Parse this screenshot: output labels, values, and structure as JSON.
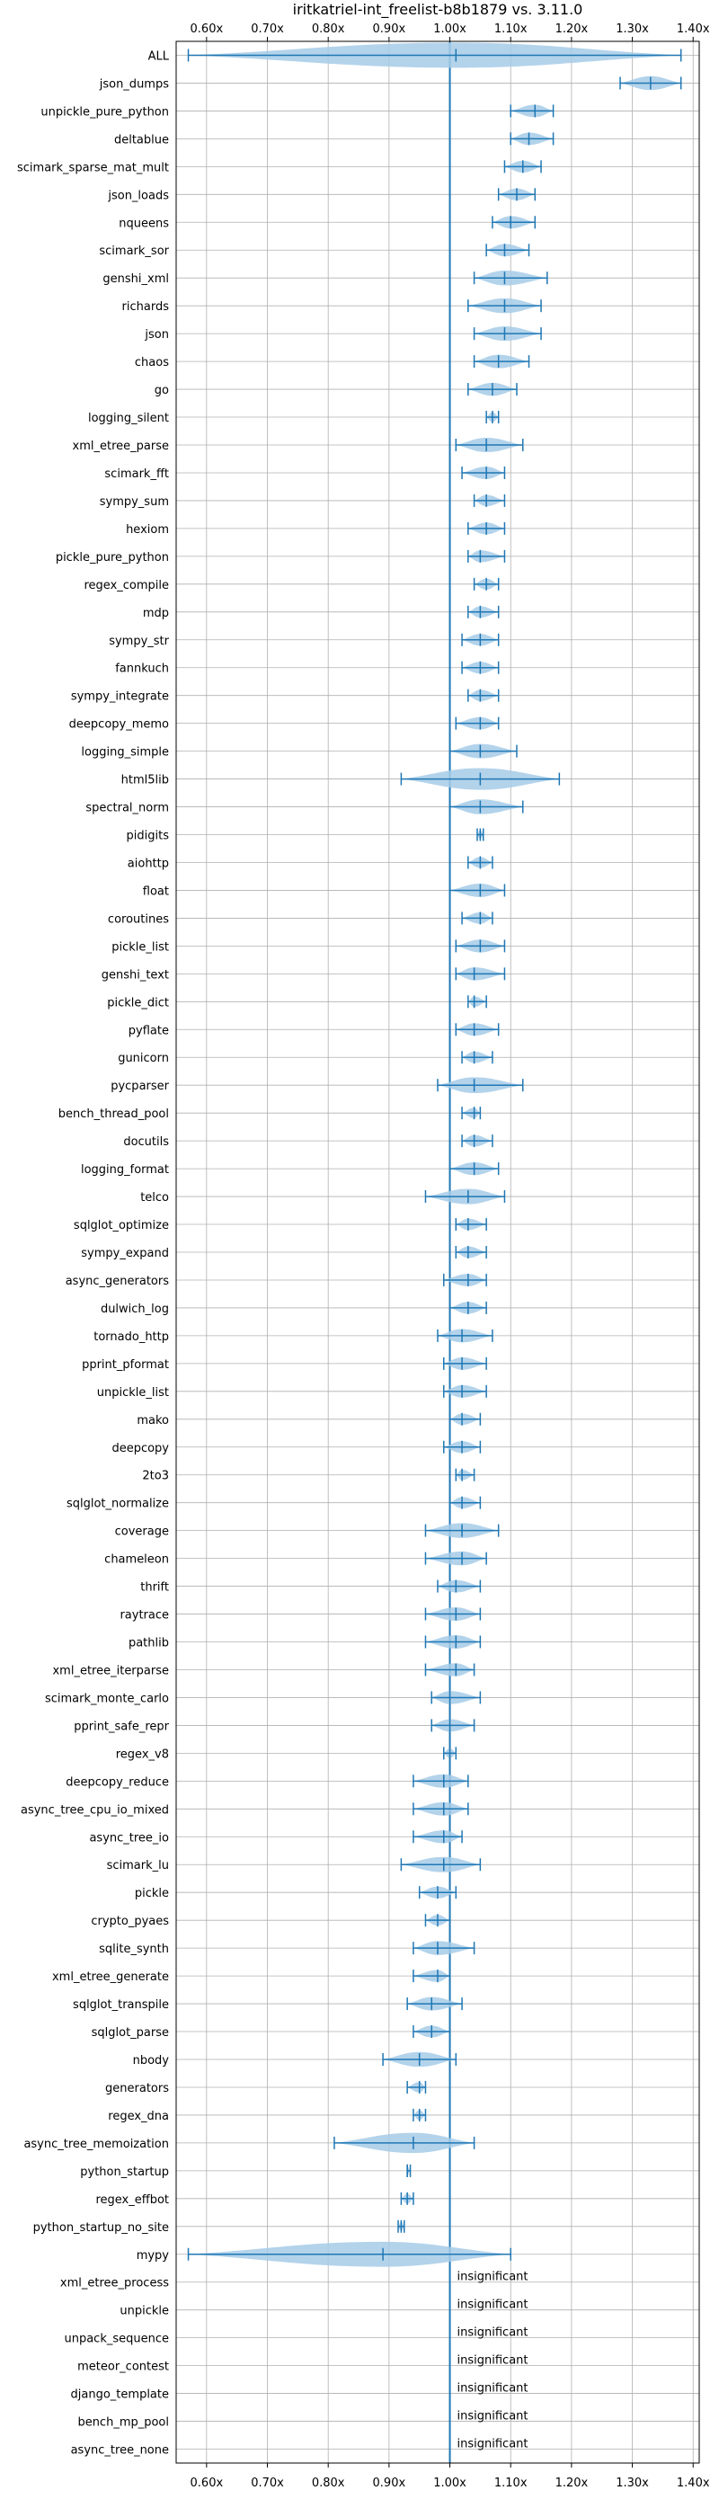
{
  "chart_data": {
    "type": "violin",
    "title": "iritkatriel-int_freelist-b8b1879 vs. 3.11.0",
    "xlabel": "",
    "ylabel": "",
    "xlim": [
      0.55,
      1.41
    ],
    "xticks": [
      0.6,
      0.7,
      0.8,
      0.9,
      1.0,
      1.1,
      1.2,
      1.3,
      1.4
    ],
    "xtick_labels": [
      "0.60x",
      "0.70x",
      "0.80x",
      "0.90x",
      "1.00x",
      "1.10x",
      "1.20x",
      "1.30x",
      "1.40x"
    ],
    "reference_line": 1.0,
    "grid": true,
    "colors": {
      "violin": "#a6cbe8",
      "line": "#1f77b4"
    },
    "benchmarks": [
      {
        "name": "ALL",
        "min": 0.57,
        "max": 1.38,
        "median": 1.01
      },
      {
        "name": "json_dumps",
        "min": 1.28,
        "max": 1.38,
        "median": 1.33
      },
      {
        "name": "unpickle_pure_python",
        "min": 1.1,
        "max": 1.17,
        "median": 1.14
      },
      {
        "name": "deltablue",
        "min": 1.1,
        "max": 1.17,
        "median": 1.13
      },
      {
        "name": "scimark_sparse_mat_mult",
        "min": 1.09,
        "max": 1.15,
        "median": 1.12
      },
      {
        "name": "json_loads",
        "min": 1.08,
        "max": 1.14,
        "median": 1.11
      },
      {
        "name": "nqueens",
        "min": 1.07,
        "max": 1.14,
        "median": 1.1
      },
      {
        "name": "scimark_sor",
        "min": 1.06,
        "max": 1.13,
        "median": 1.09
      },
      {
        "name": "genshi_xml",
        "min": 1.04,
        "max": 1.16,
        "median": 1.09
      },
      {
        "name": "richards",
        "min": 1.03,
        "max": 1.15,
        "median": 1.09
      },
      {
        "name": "json",
        "min": 1.04,
        "max": 1.15,
        "median": 1.09
      },
      {
        "name": "chaos",
        "min": 1.04,
        "max": 1.13,
        "median": 1.08
      },
      {
        "name": "go",
        "min": 1.03,
        "max": 1.11,
        "median": 1.07
      },
      {
        "name": "logging_silent",
        "min": 1.06,
        "max": 1.08,
        "median": 1.07
      },
      {
        "name": "xml_etree_parse",
        "min": 1.01,
        "max": 1.12,
        "median": 1.06
      },
      {
        "name": "scimark_fft",
        "min": 1.02,
        "max": 1.09,
        "median": 1.06
      },
      {
        "name": "sympy_sum",
        "min": 1.04,
        "max": 1.09,
        "median": 1.06
      },
      {
        "name": "hexiom",
        "min": 1.03,
        "max": 1.09,
        "median": 1.06
      },
      {
        "name": "pickle_pure_python",
        "min": 1.03,
        "max": 1.09,
        "median": 1.05
      },
      {
        "name": "regex_compile",
        "min": 1.04,
        "max": 1.08,
        "median": 1.06
      },
      {
        "name": "mdp",
        "min": 1.03,
        "max": 1.08,
        "median": 1.05
      },
      {
        "name": "sympy_str",
        "min": 1.02,
        "max": 1.08,
        "median": 1.05
      },
      {
        "name": "fannkuch",
        "min": 1.02,
        "max": 1.08,
        "median": 1.05
      },
      {
        "name": "sympy_integrate",
        "min": 1.03,
        "max": 1.08,
        "median": 1.05
      },
      {
        "name": "deepcopy_memo",
        "min": 1.01,
        "max": 1.08,
        "median": 1.05
      },
      {
        "name": "logging_simple",
        "min": 1.0,
        "max": 1.11,
        "median": 1.05
      },
      {
        "name": "html5lib",
        "min": 0.92,
        "max": 1.18,
        "median": 1.05
      },
      {
        "name": "spectral_norm",
        "min": 1.0,
        "max": 1.12,
        "median": 1.05
      },
      {
        "name": "pidigits",
        "min": 1.045,
        "max": 1.055,
        "median": 1.05
      },
      {
        "name": "aiohttp",
        "min": 1.03,
        "max": 1.07,
        "median": 1.05
      },
      {
        "name": "float",
        "min": 1.0,
        "max": 1.09,
        "median": 1.05
      },
      {
        "name": "coroutines",
        "min": 1.02,
        "max": 1.07,
        "median": 1.05
      },
      {
        "name": "pickle_list",
        "min": 1.01,
        "max": 1.09,
        "median": 1.05
      },
      {
        "name": "genshi_text",
        "min": 1.01,
        "max": 1.09,
        "median": 1.04
      },
      {
        "name": "pickle_dict",
        "min": 1.03,
        "max": 1.06,
        "median": 1.04
      },
      {
        "name": "pyflate",
        "min": 1.01,
        "max": 1.08,
        "median": 1.04
      },
      {
        "name": "gunicorn",
        "min": 1.02,
        "max": 1.07,
        "median": 1.04
      },
      {
        "name": "pycparser",
        "min": 0.98,
        "max": 1.12,
        "median": 1.04
      },
      {
        "name": "bench_thread_pool",
        "min": 1.02,
        "max": 1.05,
        "median": 1.04
      },
      {
        "name": "docutils",
        "min": 1.02,
        "max": 1.07,
        "median": 1.04
      },
      {
        "name": "logging_format",
        "min": 1.0,
        "max": 1.08,
        "median": 1.04
      },
      {
        "name": "telco",
        "min": 0.96,
        "max": 1.09,
        "median": 1.03
      },
      {
        "name": "sqlglot_optimize",
        "min": 1.01,
        "max": 1.06,
        "median": 1.03
      },
      {
        "name": "sympy_expand",
        "min": 1.01,
        "max": 1.06,
        "median": 1.03
      },
      {
        "name": "async_generators",
        "min": 0.99,
        "max": 1.06,
        "median": 1.03
      },
      {
        "name": "dulwich_log",
        "min": 1.0,
        "max": 1.06,
        "median": 1.03
      },
      {
        "name": "tornado_http",
        "min": 0.98,
        "max": 1.07,
        "median": 1.02
      },
      {
        "name": "pprint_pformat",
        "min": 0.99,
        "max": 1.06,
        "median": 1.02
      },
      {
        "name": "unpickle_list",
        "min": 0.99,
        "max": 1.06,
        "median": 1.02
      },
      {
        "name": "mako",
        "min": 1.0,
        "max": 1.05,
        "median": 1.02
      },
      {
        "name": "deepcopy",
        "min": 0.99,
        "max": 1.05,
        "median": 1.02
      },
      {
        "name": "2to3",
        "min": 1.01,
        "max": 1.04,
        "median": 1.02
      },
      {
        "name": "sqlglot_normalize",
        "min": 1.0,
        "max": 1.05,
        "median": 1.02
      },
      {
        "name": "coverage",
        "min": 0.96,
        "max": 1.08,
        "median": 1.02
      },
      {
        "name": "chameleon",
        "min": 0.96,
        "max": 1.06,
        "median": 1.02
      },
      {
        "name": "thrift",
        "min": 0.98,
        "max": 1.05,
        "median": 1.01
      },
      {
        "name": "raytrace",
        "min": 0.96,
        "max": 1.05,
        "median": 1.01
      },
      {
        "name": "pathlib",
        "min": 0.96,
        "max": 1.05,
        "median": 1.01
      },
      {
        "name": "xml_etree_iterparse",
        "min": 0.96,
        "max": 1.04,
        "median": 1.01
      },
      {
        "name": "scimark_monte_carlo",
        "min": 0.97,
        "max": 1.05,
        "median": 1.0
      },
      {
        "name": "pprint_safe_repr",
        "min": 0.97,
        "max": 1.04,
        "median": 1.0
      },
      {
        "name": "regex_v8",
        "min": 0.99,
        "max": 1.01,
        "median": 1.0
      },
      {
        "name": "deepcopy_reduce",
        "min": 0.94,
        "max": 1.03,
        "median": 0.99
      },
      {
        "name": "async_tree_cpu_io_mixed",
        "min": 0.94,
        "max": 1.03,
        "median": 0.99
      },
      {
        "name": "async_tree_io",
        "min": 0.94,
        "max": 1.02,
        "median": 0.99
      },
      {
        "name": "scimark_lu",
        "min": 0.92,
        "max": 1.05,
        "median": 0.99
      },
      {
        "name": "pickle",
        "min": 0.95,
        "max": 1.01,
        "median": 0.98
      },
      {
        "name": "crypto_pyaes",
        "min": 0.96,
        "max": 1.0,
        "median": 0.98
      },
      {
        "name": "sqlite_synth",
        "min": 0.94,
        "max": 1.04,
        "median": 0.98
      },
      {
        "name": "xml_etree_generate",
        "min": 0.94,
        "max": 1.0,
        "median": 0.98
      },
      {
        "name": "sqlglot_transpile",
        "min": 0.93,
        "max": 1.02,
        "median": 0.97
      },
      {
        "name": "sqlglot_parse",
        "min": 0.94,
        "max": 1.0,
        "median": 0.97
      },
      {
        "name": "nbody",
        "min": 0.89,
        "max": 1.01,
        "median": 0.95
      },
      {
        "name": "generators",
        "min": 0.93,
        "max": 0.96,
        "median": 0.95
      },
      {
        "name": "regex_dna",
        "min": 0.94,
        "max": 0.96,
        "median": 0.95
      },
      {
        "name": "async_tree_memoization",
        "min": 0.81,
        "max": 1.04,
        "median": 0.94
      },
      {
        "name": "python_startup",
        "min": 0.93,
        "max": 0.935,
        "median": 0.93
      },
      {
        "name": "regex_effbot",
        "min": 0.92,
        "max": 0.94,
        "median": 0.93
      },
      {
        "name": "python_startup_no_site",
        "min": 0.915,
        "max": 0.925,
        "median": 0.92
      },
      {
        "name": "mypy",
        "min": 0.57,
        "max": 1.1,
        "median": 0.89
      },
      {
        "name": "xml_etree_process",
        "insignificant": true
      },
      {
        "name": "unpickle",
        "insignificant": true
      },
      {
        "name": "unpack_sequence",
        "insignificant": true
      },
      {
        "name": "meteor_contest",
        "insignificant": true
      },
      {
        "name": "django_template",
        "insignificant": true
      },
      {
        "name": "bench_mp_pool",
        "insignificant": true
      },
      {
        "name": "async_tree_none",
        "insignificant": true
      }
    ],
    "insignificant_label": "insignificant"
  }
}
